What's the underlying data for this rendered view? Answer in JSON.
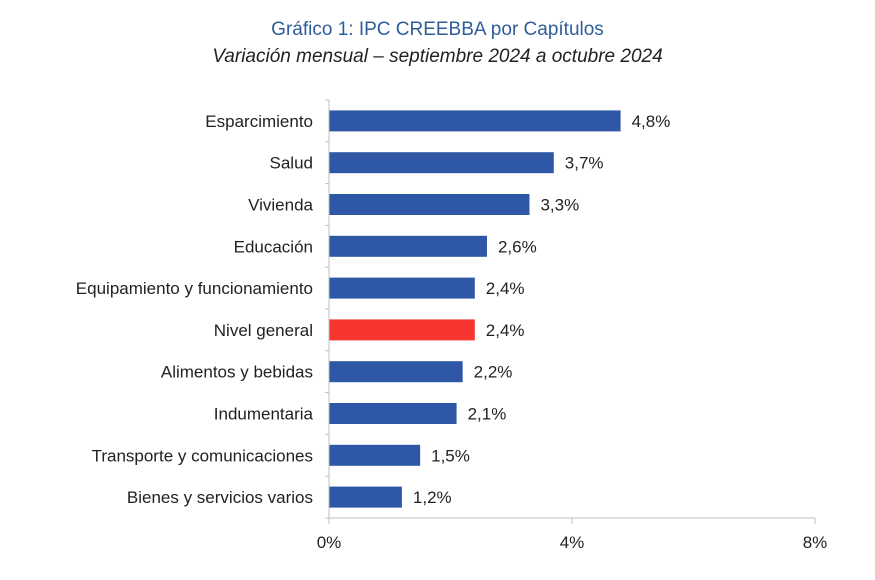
{
  "chart_data": {
    "type": "bar",
    "orientation": "horizontal",
    "title": "Gráfico 1: IPC CREEBBA por Capítulos",
    "subtitle": "Variación mensual – septiembre 2024 a octubre 2024",
    "categories": [
      "Esparcimiento",
      "Salud",
      "Vivienda",
      "Educación",
      "Equipamiento y funcionamiento",
      "Nivel general",
      "Alimentos y bebidas",
      "Indumentaria",
      "Transporte y comunicaciones",
      "Bienes y servicios varios"
    ],
    "values": [
      4.8,
      3.7,
      3.3,
      2.6,
      2.4,
      2.4,
      2.2,
      2.1,
      1.5,
      1.2
    ],
    "value_labels": [
      "4,8%",
      "3,7%",
      "3,3%",
      "2,6%",
      "2,4%",
      "2,4%",
      "2,2%",
      "2,1%",
      "1,5%",
      "1,2%"
    ],
    "xlim": [
      0,
      8
    ],
    "x_ticks": [
      0,
      4,
      8
    ],
    "x_tick_labels": [
      "0%",
      "4%",
      "8%"
    ],
    "grid": false,
    "legend": "none",
    "colors": {
      "bar": "#2e57a5",
      "highlight_bar": "#f5352e",
      "title": "#2f5d99",
      "axis": "#bfbfbf"
    },
    "highlight_category": "Nivel general"
  }
}
